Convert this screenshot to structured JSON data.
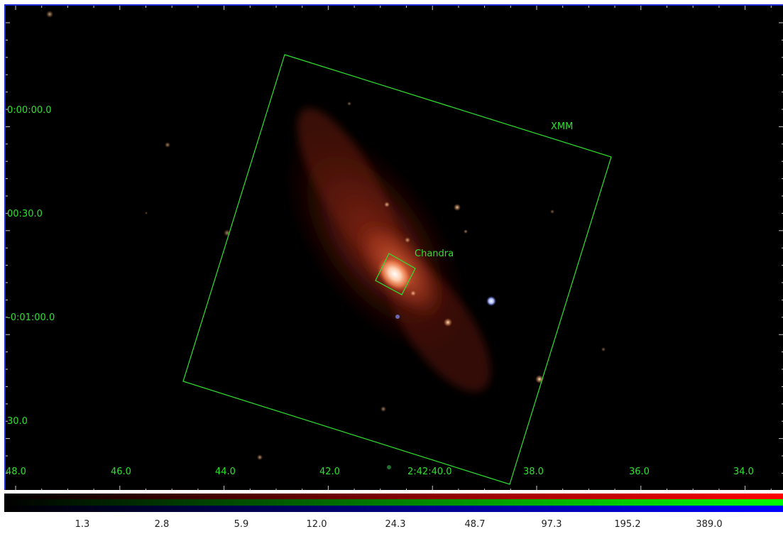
{
  "image": {
    "subject": "spiral-galaxy-xray-composite",
    "colormap": "rgb-composite"
  },
  "regions": {
    "xmm_label": "XMM",
    "chandra_label": "Chandra",
    "color": "#2fe02f"
  },
  "axes": {
    "y_labels": [
      "0:00:00.0",
      "00:30.0",
      "-0:01:00.0",
      "30.0"
    ],
    "x_labels": [
      "48.0",
      "46.0",
      "44.0",
      "42.0",
      "2:42:40.0",
      "38.0",
      "36.0",
      "34.0"
    ],
    "label_color": "#2fe02f"
  },
  "colorbar": {
    "ticks": [
      "1.3",
      "2.8",
      "5.9",
      "12.0",
      "24.3",
      "48.7",
      "97.3",
      "195.2",
      "389.0"
    ]
  }
}
